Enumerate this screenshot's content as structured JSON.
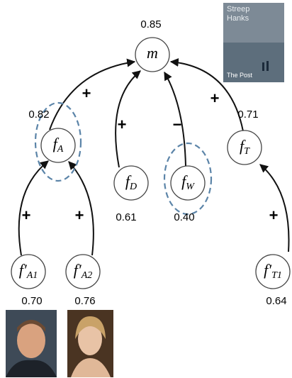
{
  "poster": {
    "lines": [
      "Streep",
      "Hanks"
    ],
    "title": "The Post"
  },
  "nodes": [
    {
      "label": "m",
      "sub": "",
      "value": "0.85"
    },
    {
      "label": "f",
      "sub": "A",
      "value": "0.82"
    },
    {
      "label": "f",
      "sub": "D",
      "value": "0.61"
    },
    {
      "label": "f",
      "sub": "W",
      "value": "0.40"
    },
    {
      "label": "f",
      "sub": "T",
      "value": "0.71"
    },
    {
      "label": "f′",
      "sub": "A1",
      "value": "0.70"
    },
    {
      "label": "f′",
      "sub": "A2",
      "value": "0.76"
    },
    {
      "label": "f′",
      "sub": "T1",
      "value": "0.64"
    }
  ],
  "edges": [
    {
      "sign": "+"
    },
    {
      "sign": "+"
    },
    {
      "sign": "−"
    },
    {
      "sign": "+"
    },
    {
      "sign": "+"
    },
    {
      "sign": "+"
    },
    {
      "sign": "+"
    }
  ]
}
